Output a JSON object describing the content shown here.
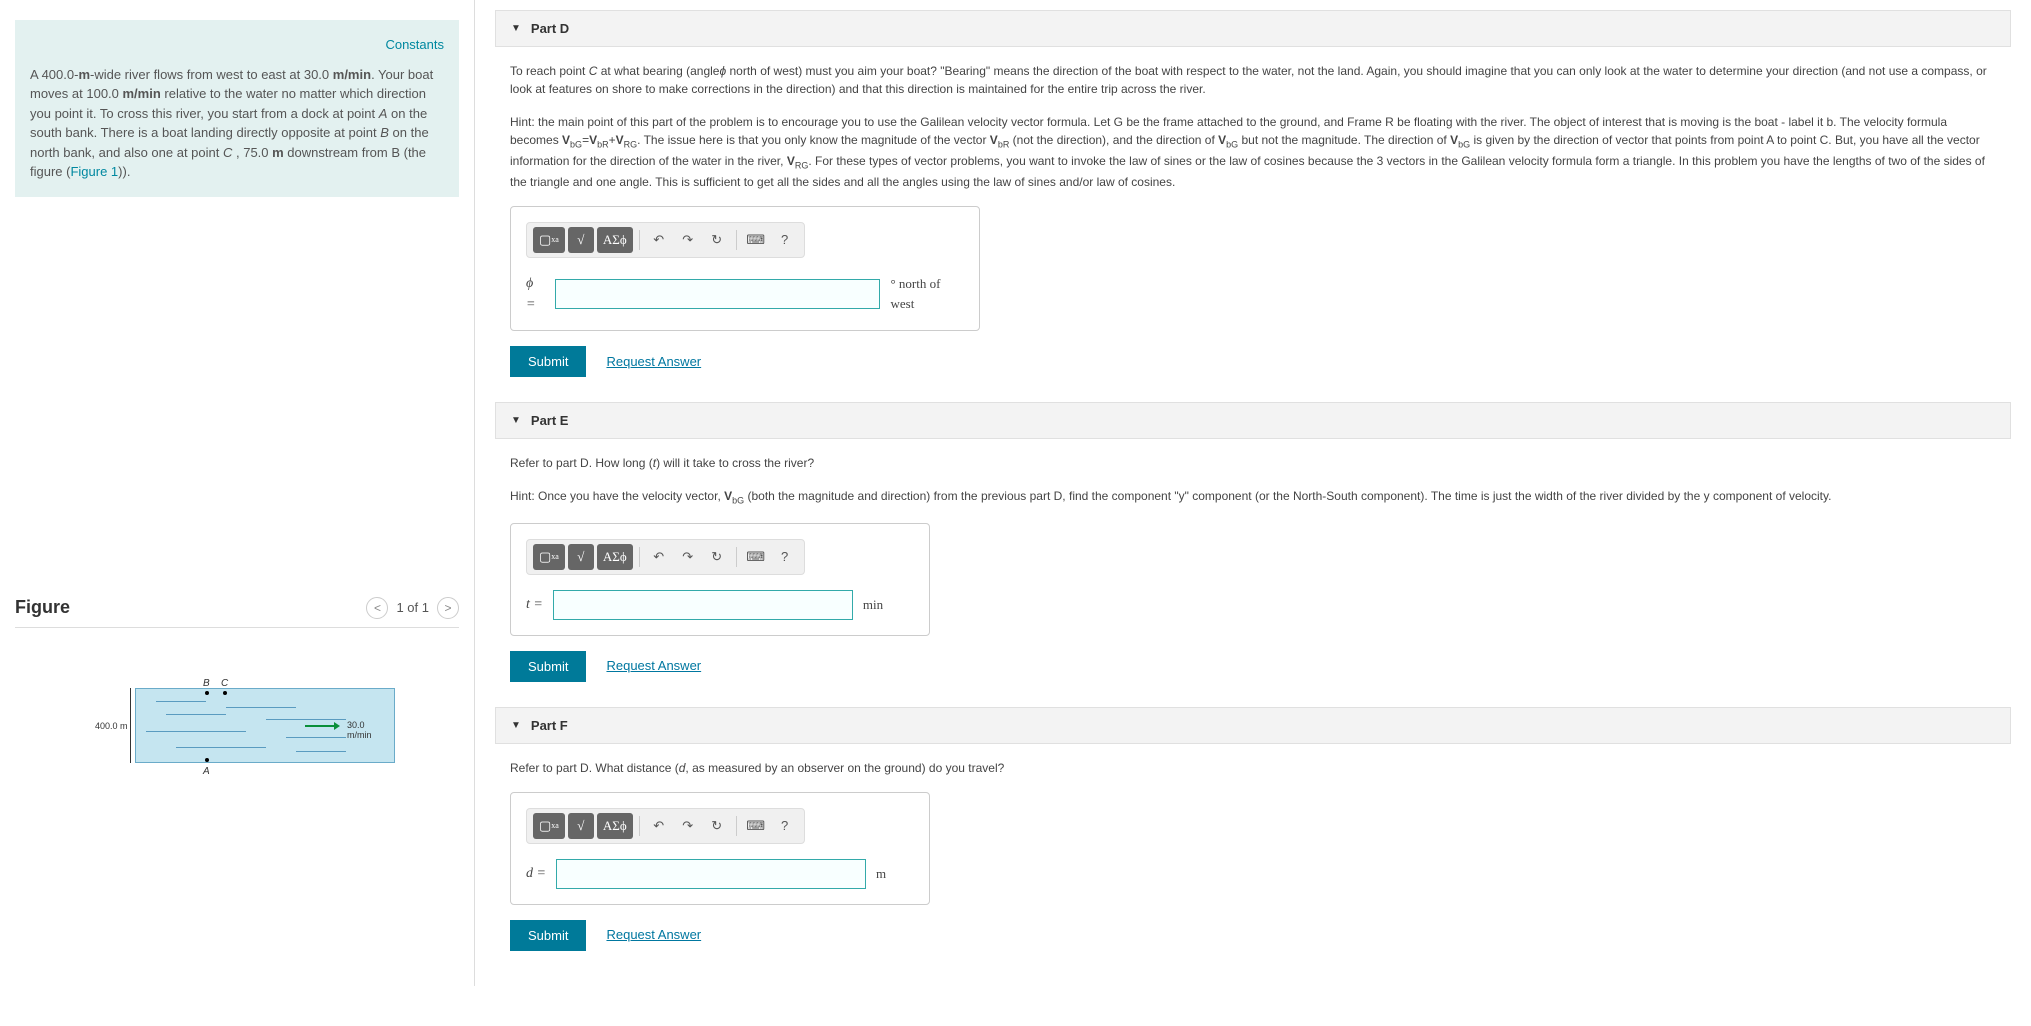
{
  "problem": {
    "constants_link": "Constants",
    "text_html": "A 400.0-<b>m</b>-wide river flows from west to east at 30.0 <b>m/min</b>. Your boat moves at 100.0 <b>m/min</b> relative to the water no matter which direction you point it. To cross this river, you start from a dock at point <i>A</i> on the south bank. There is a boat landing directly opposite at point <i>B</i> on the north bank, and also one at point <i>C</i> , 75.0 <b>m</b> downstream from B (the figure (<span style='color:#0088a0'>Figure 1</span>))."
  },
  "figure": {
    "title": "Figure",
    "nav_text": "1 of 1",
    "labels": {
      "B": "B",
      "C": "C",
      "A": "A",
      "width": "400.0 m",
      "speed": "30.0 m/min"
    }
  },
  "parts": [
    {
      "id": "D",
      "title": "Part D",
      "question_html": "To reach point <i>C</i> at what bearing (angle<i>ϕ</i> north of west) must you aim your boat? \"Bearing\" means the direction of the boat with respect to the water, not the land.  Again, you should imagine that you can only look at the water to determine your direction (and not use a compass, or look at features on shore to make corrections in the direction) and that this direction is maintained for the entire trip across the river.",
      "hint_html": "Hint:  the main point of this part of the problem is to encourage you to use the Galilean velocity vector formula.  Let G be the frame attached to the ground,  and Frame R be floating with the river. The object of interest that is moving is the boat - label it b.  The velocity formula becomes <b>V</b><sub>bG</sub>=<b>V</b><sub>bR</sub>+<b>V</b><sub>RG</sub>.  The issue here is that you only know the magnitude of the vector <b>V</b><sub>bR</sub> (not the direction), and the direction of <b>V</b><sub>bG</sub> but not the magnitude. The direction of <b>V</b><sub>bG</sub> is given by the direction of vector that points from point A to point C. But, you have all the vector information for the direction of the water in the river, <b>V</b><sub>RG</sub>.  For these types of vector problems, you want to invoke the law of sines or the law of cosines because the 3 vectors in the Galilean velocity formula form a triangle. In this problem you have the lengths of two of the sides of the triangle and one angle.   This is sufficient to get all the sides and all the angles using the law of sines and/or law of cosines.",
      "var": "ϕ =",
      "unit": "° north of west",
      "submit_label": "Submit",
      "request_label": "Request Answer"
    },
    {
      "id": "E",
      "title": "Part E",
      "question_html": "Refer to part D. How long (<i>t</i>) will it take to cross the river?",
      "hint_html": "Hint:  Once you have the velocity vector, <b>V</b><sub>bG</sub> (both the magnitude and direction) from the previous part D, find the component \"y\" component (or the North-South component). The time is just the width of the river divided by the y component of velocity.",
      "var": "t =",
      "unit": "min",
      "submit_label": "Submit",
      "request_label": "Request Answer"
    },
    {
      "id": "F",
      "title": "Part F",
      "question_html": "Refer to part D. What distance (<i>d</i>, as measured by an observer on the ground) do you travel?",
      "hint_html": "",
      "var": "d =",
      "unit": "m",
      "submit_label": "Submit",
      "request_label": "Request Answer"
    }
  ],
  "toolbar": {
    "template": "▢",
    "sqrt": "√",
    "greek": "ΑΣϕ",
    "undo": "↶",
    "redo": "↷",
    "reset": "↻",
    "keyboard": "⌨",
    "help": "?"
  },
  "colors": {
    "problem_bg": "#e3f1f0",
    "link": "#0088a0",
    "submit_bg": "#007a99",
    "input_border": "#3aa",
    "part_header_bg": "#f3f3f3",
    "river_bg": "#c5e5f0"
  }
}
